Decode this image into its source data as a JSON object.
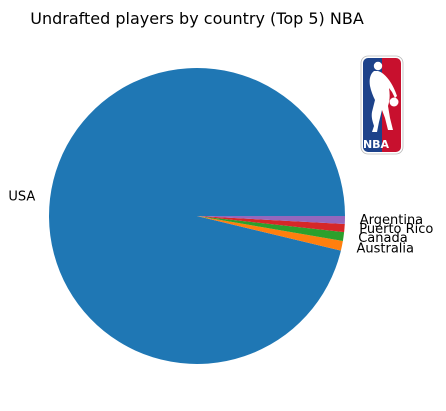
{
  "chart_data": {
    "type": "pie",
    "title": "Undrafted players by country (Top 5) NBA",
    "start_angle_deg": 0,
    "direction": "counterclockwise",
    "slices": [
      {
        "label": "USA",
        "value": 1000,
        "color": "#1f77b4"
      },
      {
        "label": "Australia",
        "value": 11,
        "color": "#ff7f0e"
      },
      {
        "label": "Canada",
        "value": 10,
        "color": "#2ca02c"
      },
      {
        "label": "Puerto Rico",
        "value": 9,
        "color": "#d62728"
      },
      {
        "label": "Argentina",
        "value": 9,
        "color": "#9467bd"
      }
    ]
  },
  "logo": {
    "icon": "nba-logo-icon",
    "text": "NBA",
    "colors": {
      "left": "#1d428a",
      "right": "#c8102e",
      "figure": "#ffffff"
    }
  }
}
